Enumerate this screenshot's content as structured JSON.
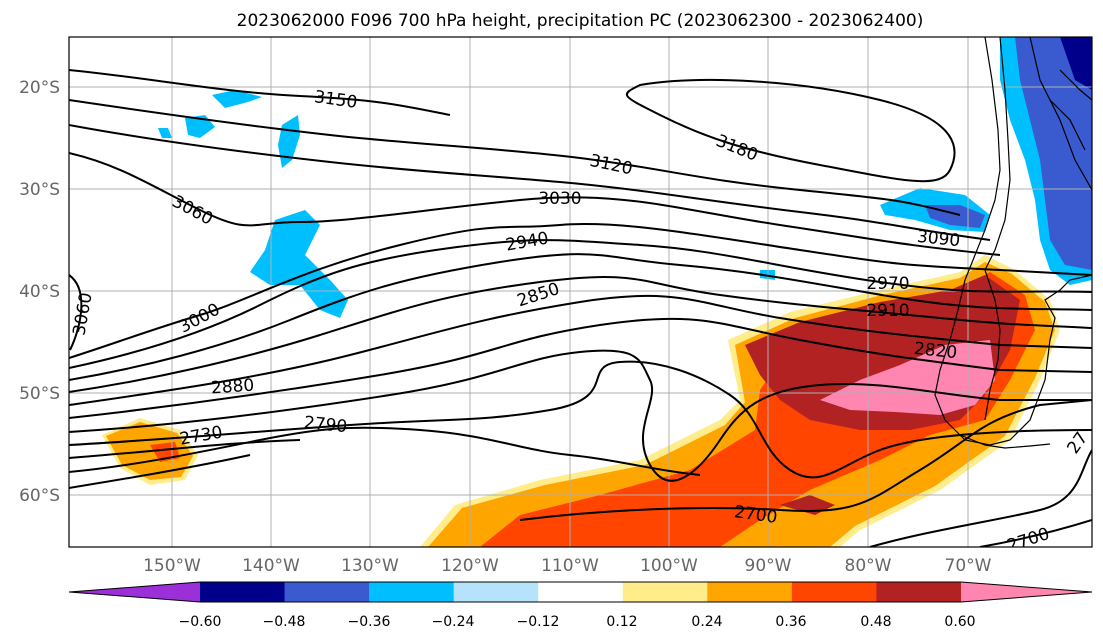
{
  "title": "2023062000 F096 700 hPa height, precipitation PC (2023062300 - 2023062400)",
  "axes": {
    "x_ticks": [
      "150°W",
      "140°W",
      "130°W",
      "120°W",
      "110°W",
      "100°W",
      "90°W",
      "80°W",
      "70°W"
    ],
    "y_ticks": [
      "20°S",
      "30°S",
      "40°S",
      "50°S",
      "60°S"
    ]
  },
  "contour_labels": [
    "3150",
    "3180",
    "3120",
    "3060",
    "3030",
    "3090",
    "2940",
    "3060",
    "2970",
    "3000",
    "2850",
    "2910",
    "2820",
    "2880",
    "2790",
    "2730",
    "2700",
    "2700",
    "27"
  ],
  "colorbar": {
    "ticks": [
      "−0.60",
      "−0.48",
      "−0.36",
      "−0.24",
      "−0.12",
      "0.12",
      "0.24",
      "0.36",
      "0.48",
      "0.60"
    ],
    "colors": [
      "#9b30d9",
      "#00008b",
      "#3a5bd0",
      "#00bfff",
      "#b4e3fb",
      "#ffffff",
      "#ffec8b",
      "#ffa500",
      "#ff4500",
      "#b22222",
      "#ff86b0"
    ]
  },
  "colors": {
    "neg_strong": "#3a5bd0",
    "neg_mid": "#00bfff",
    "neg_weak": "#b4e3fb",
    "pos_weak": "#ffec8b",
    "pos_mid": "#ffa500",
    "pos_strong": "#ff4500",
    "pos_heavy": "#b22222",
    "pos_max": "#ff86b0"
  }
}
